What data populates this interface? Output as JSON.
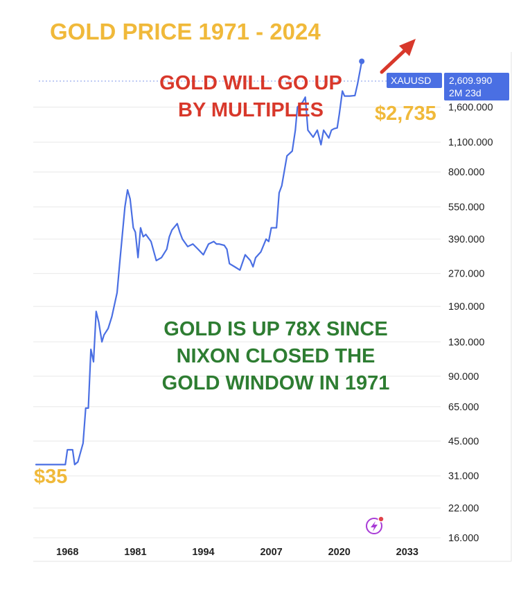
{
  "chart_data": {
    "type": "line",
    "title": "GOLD PRICE 1971 - 2024",
    "yscale": "log",
    "ylim": [
      13,
      3200
    ],
    "xlim": [
      1962,
      2037
    ],
    "y_ticks": [
      {
        "value": 16,
        "label": "16.000"
      },
      {
        "value": 22,
        "label": "22.000"
      },
      {
        "value": 31,
        "label": "31.000"
      },
      {
        "value": 45,
        "label": "45.000"
      },
      {
        "value": 65,
        "label": "65.000"
      },
      {
        "value": 90,
        "label": "90.000"
      },
      {
        "value": 130,
        "label": "130.000"
      },
      {
        "value": 190,
        "label": "190.000"
      },
      {
        "value": 270,
        "label": "270.000"
      },
      {
        "value": 390,
        "label": "390.000"
      },
      {
        "value": 550,
        "label": "550.000"
      },
      {
        "value": 800,
        "label": "800.000"
      },
      {
        "value": 1100,
        "label": "1,100.000"
      },
      {
        "value": 1600,
        "label": "1,600.000"
      }
    ],
    "x_ticks": [
      {
        "value": 1968,
        "label": "1968"
      },
      {
        "value": 1981,
        "label": "1981"
      },
      {
        "value": 1994,
        "label": "1994"
      },
      {
        "value": 2007,
        "label": "2007"
      },
      {
        "value": 2020,
        "label": "2020"
      },
      {
        "value": 2033,
        "label": "2033"
      }
    ],
    "series": [
      {
        "color": "#4a6fe3",
        "x": [
          1962,
          1965,
          1967.6,
          1968,
          1969,
          1969.4,
          1970,
          1971,
          1971.5,
          1972,
          1972.5,
          1973,
          1973.5,
          1974,
          1974.6,
          1975,
          1975.8,
          1976.5,
          1977.5,
          1978,
          1979,
          1979.5,
          1980,
          1980.6,
          1981,
          1981.5,
          1982,
          1982.5,
          1983,
          1984,
          1985,
          1986,
          1987,
          1987.5,
          1988,
          1989,
          1989.5,
          1990,
          1991,
          1992,
          1993,
          1994,
          1995,
          1996,
          1996.5,
          1997,
          1998,
          1998.5,
          1999,
          2000,
          2001,
          2002,
          2003,
          2003.5,
          2004,
          2005,
          2006,
          2006.5,
          2007,
          2008,
          2008.5,
          2009,
          2010,
          2011,
          2011.6,
          2012,
          2013,
          2013.5,
          2014,
          2015,
          2015.8,
          2016.5,
          2017,
          2018,
          2018.5,
          2019,
          2019.6,
          2020,
          2020.6,
          2021,
          2022,
          2023,
          2023.5,
          2024.3
        ],
        "y": [
          35,
          35,
          35,
          41,
          41,
          35,
          36,
          44,
          64,
          64,
          120,
          105,
          180,
          160,
          130,
          140,
          150,
          170,
          220,
          300,
          550,
          660,
          600,
          440,
          420,
          320,
          440,
          400,
          410,
          380,
          310,
          320,
          350,
          400,
          430,
          460,
          420,
          390,
          360,
          370,
          350,
          330,
          370,
          380,
          370,
          370,
          365,
          350,
          300,
          290,
          280,
          330,
          310,
          290,
          320,
          340,
          390,
          380,
          440,
          440,
          640,
          690,
          950,
          1000,
          1250,
          1600,
          1690,
          1780,
          1250,
          1160,
          1250,
          1070,
          1250,
          1150,
          1250,
          1270,
          1280,
          1480,
          1900,
          1800,
          1800,
          1810,
          2050,
          2610
        ]
      }
    ],
    "annotations": [
      {
        "text": "GOLD WILL GO UP",
        "color": "#d8382b"
      },
      {
        "text": "BY MULTIPLES",
        "color": "#d8382b"
      },
      {
        "text": "GOLD IS UP 78X SINCE",
        "color": "#2e7d32"
      },
      {
        "text": "NIXON  CLOSED THE",
        "color": "#2e7d32"
      },
      {
        "text": "GOLD WINDOW IN 1971",
        "color": "#2e7d32"
      },
      {
        "text": "$2,735",
        "color": "#f0b93a"
      },
      {
        "text": "$35",
        "color": "#f0b93a"
      }
    ],
    "last_value_badge": {
      "symbol": "XAUUSD",
      "value": "2,609.990",
      "countdown": "2M 23d",
      "color": "#4a6fe3"
    },
    "grid": true,
    "legend": "none"
  },
  "colors": {
    "line": "#4a6fe3",
    "title": "#f0b93a",
    "arrow": "#d8382b",
    "grid": "#e8e8e8",
    "icon": "#a83bd6"
  },
  "icons": {
    "arrow": "up-right-arrow-icon",
    "corner": "lightning-bolt-icon"
  }
}
